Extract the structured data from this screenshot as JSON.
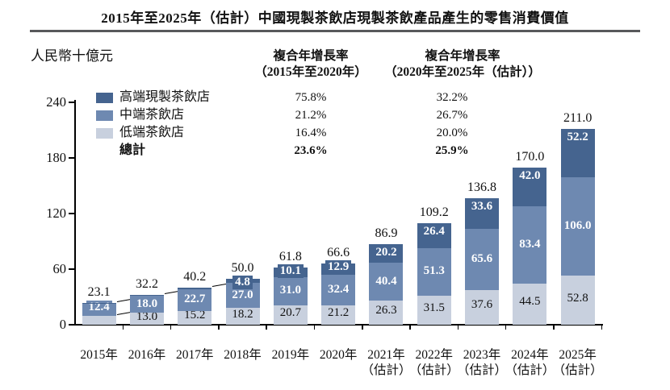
{
  "cagr_table": {
    "headers": [
      {
        "line1": "複合年增長率",
        "line2": "（2015年至2020年）"
      },
      {
        "line1": "複合年增長率",
        "line2": "（2020年至2025年（估計））"
      }
    ],
    "rows": [
      {
        "label": "高端現製茶飲店",
        "cagr_2015_2020": "75.8%",
        "cagr_2020_2025": "32.2%",
        "color": "#45648f",
        "bold": false
      },
      {
        "label": "中端茶飲店",
        "cagr_2015_2020": "21.2%",
        "cagr_2020_2025": "26.7%",
        "color": "#6e89b1",
        "bold": false
      },
      {
        "label": "低端茶飲店",
        "cagr_2015_2020": "16.4%",
        "cagr_2020_2025": "20.0%",
        "color": "#c8d0de",
        "bold": false
      },
      {
        "label": "總計",
        "cagr_2015_2020": "23.6%",
        "cagr_2020_2025": "25.9%",
        "color": "",
        "bold": true
      }
    ]
  },
  "chart_data": {
    "type": "bar",
    "stacked": true,
    "title": "2015年至2025年（估計）中國現製茶飲店現製茶飲產品產生的零售消費價值",
    "ylabel": "人民幣十億元",
    "ylim": [
      0,
      240
    ],
    "yticks": [
      0,
      60,
      120,
      180,
      240
    ],
    "grid": false,
    "legend_position": "top-left",
    "categories": [
      {
        "label": "2015年",
        "sub": ""
      },
      {
        "label": "2016年",
        "sub": ""
      },
      {
        "label": "2017年",
        "sub": ""
      },
      {
        "label": "2018年",
        "sub": ""
      },
      {
        "label": "2019年",
        "sub": ""
      },
      {
        "label": "2020年",
        "sub": ""
      },
      {
        "label": "2021年",
        "sub": "（估計）"
      },
      {
        "label": "2022年",
        "sub": "（估計）"
      },
      {
        "label": "2023年",
        "sub": "（估計）"
      },
      {
        "label": "2024年",
        "sub": "（估計）"
      },
      {
        "label": "2025年",
        "sub": "（估計）"
      }
    ],
    "series": [
      {
        "name": "低端茶飲店",
        "role": "low-end",
        "color": "#c8d0de",
        "values": [
          9.9,
          13.0,
          15.2,
          18.2,
          20.7,
          21.2,
          26.3,
          31.5,
          37.6,
          44.5,
          52.8
        ]
      },
      {
        "name": "中端茶飲店",
        "role": "mid-end",
        "color": "#6e89b1",
        "values": [
          12.4,
          18.0,
          22.7,
          27.0,
          31.0,
          32.4,
          40.4,
          51.3,
          65.6,
          83.4,
          106.0
        ]
      },
      {
        "name": "高端現製茶飲店",
        "role": "high-end",
        "color": "#45648f",
        "values": [
          0.8,
          1.3,
          2.2,
          4.8,
          10.1,
          12.9,
          20.2,
          26.4,
          33.6,
          42.0,
          52.2
        ]
      }
    ],
    "totals": [
      23.1,
      32.2,
      40.2,
      50.0,
      61.8,
      66.6,
      86.9,
      109.2,
      136.8,
      170.0,
      211.0
    ]
  }
}
